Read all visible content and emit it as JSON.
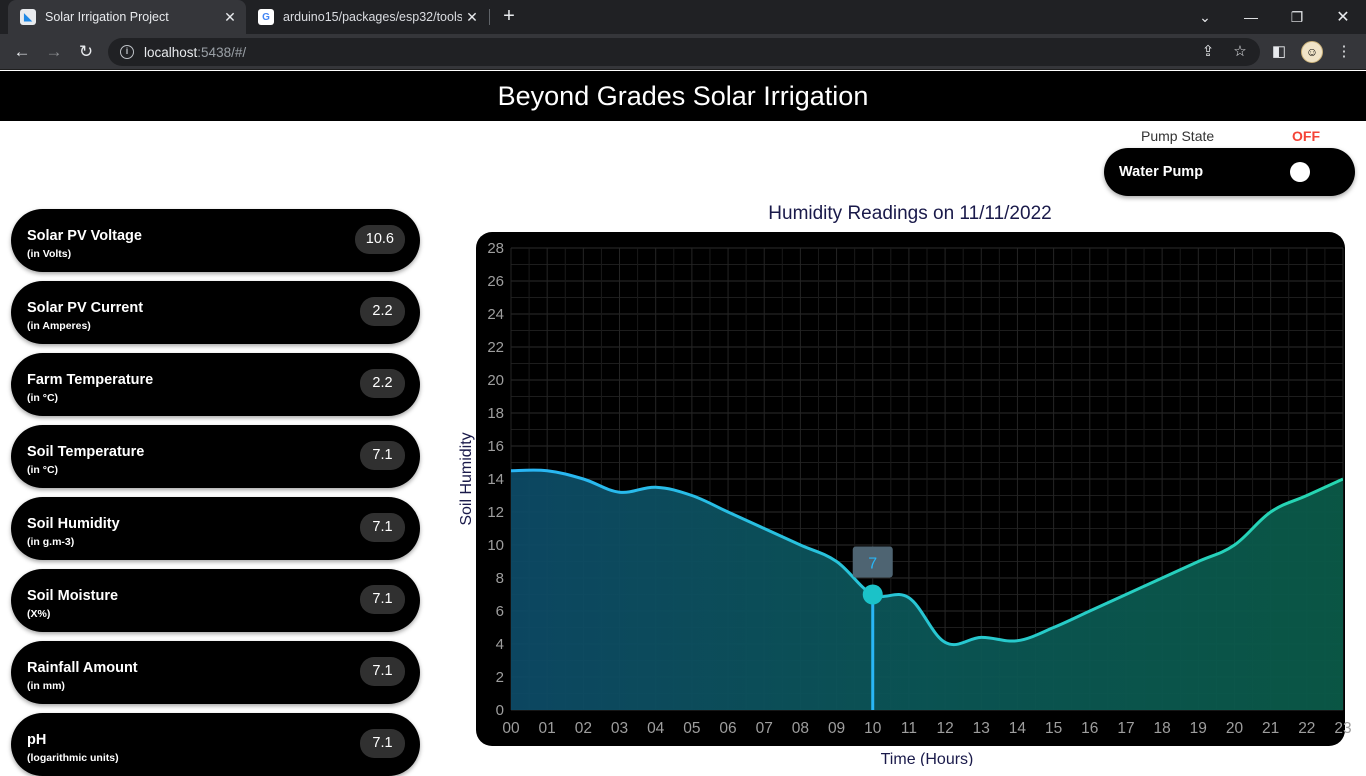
{
  "browser": {
    "tabs": [
      {
        "title": "Solar Irrigation Project",
        "icon": "flutter-icon",
        "active": true
      },
      {
        "title": "arduino15/packages/esp32/tools",
        "icon": "google-icon",
        "active": false
      }
    ],
    "url_host": "localhost",
    "url_path": ":5438/#/"
  },
  "app": {
    "title": "Beyond Grades Solar Irrigation"
  },
  "pump": {
    "state_label": "Pump State",
    "state_value": "OFF",
    "state_color": "#f44336",
    "toggle_label": "Water Pump",
    "toggle_on": false
  },
  "metrics": [
    {
      "label": "Solar PV Voltage",
      "unit": "(in Volts)",
      "value": "10.6"
    },
    {
      "label": "Solar PV Current",
      "unit": "(in Amperes)",
      "value": "2.2"
    },
    {
      "label": "Farm Temperature",
      "unit": "(in °C)",
      "value": "2.2"
    },
    {
      "label": "Soil Temperature",
      "unit": "(in °C)",
      "value": "7.1"
    },
    {
      "label": "Soil Humidity",
      "unit": "(in g.m-3)",
      "value": "7.1"
    },
    {
      "label": "Soil Moisture",
      "unit": "(X%)",
      "value": "7.1"
    },
    {
      "label": "Rainfall Amount",
      "unit": "(in mm)",
      "value": "7.1"
    },
    {
      "label": "pH",
      "unit": "(logarithmic units)",
      "value": "7.1"
    }
  ],
  "chart_data": {
    "type": "area",
    "title": "Humidity Readings on 11/11/2022",
    "xlabel": "Time (Hours)",
    "ylabel": "Soil Humidity",
    "categories": [
      "00",
      "01",
      "02",
      "03",
      "04",
      "05",
      "06",
      "07",
      "08",
      "09",
      "10",
      "11",
      "12",
      "13",
      "14",
      "15",
      "16",
      "17",
      "18",
      "19",
      "20",
      "21",
      "22",
      "23"
    ],
    "series": [
      {
        "values": [
          14.5,
          14.5,
          14,
          13.2,
          13.5,
          13,
          12,
          11,
          10,
          9,
          7,
          6.8,
          4.1,
          4.4,
          4.2,
          5,
          6,
          7,
          8,
          9,
          10,
          12,
          13,
          14
        ]
      }
    ],
    "ylim": [
      0,
      28
    ],
    "yticks": [
      0,
      2,
      4,
      6,
      8,
      10,
      12,
      14,
      16,
      18,
      20,
      22,
      24,
      26,
      28
    ],
    "grid": true,
    "tooltip": {
      "category": "10",
      "value": "7"
    },
    "colors": {
      "background": "#000000",
      "line_start": "#29b6f6",
      "line_end": "#26d7b0",
      "tooltip_bg": "#4e6472",
      "tooltip_text": "#29b6f6"
    }
  }
}
